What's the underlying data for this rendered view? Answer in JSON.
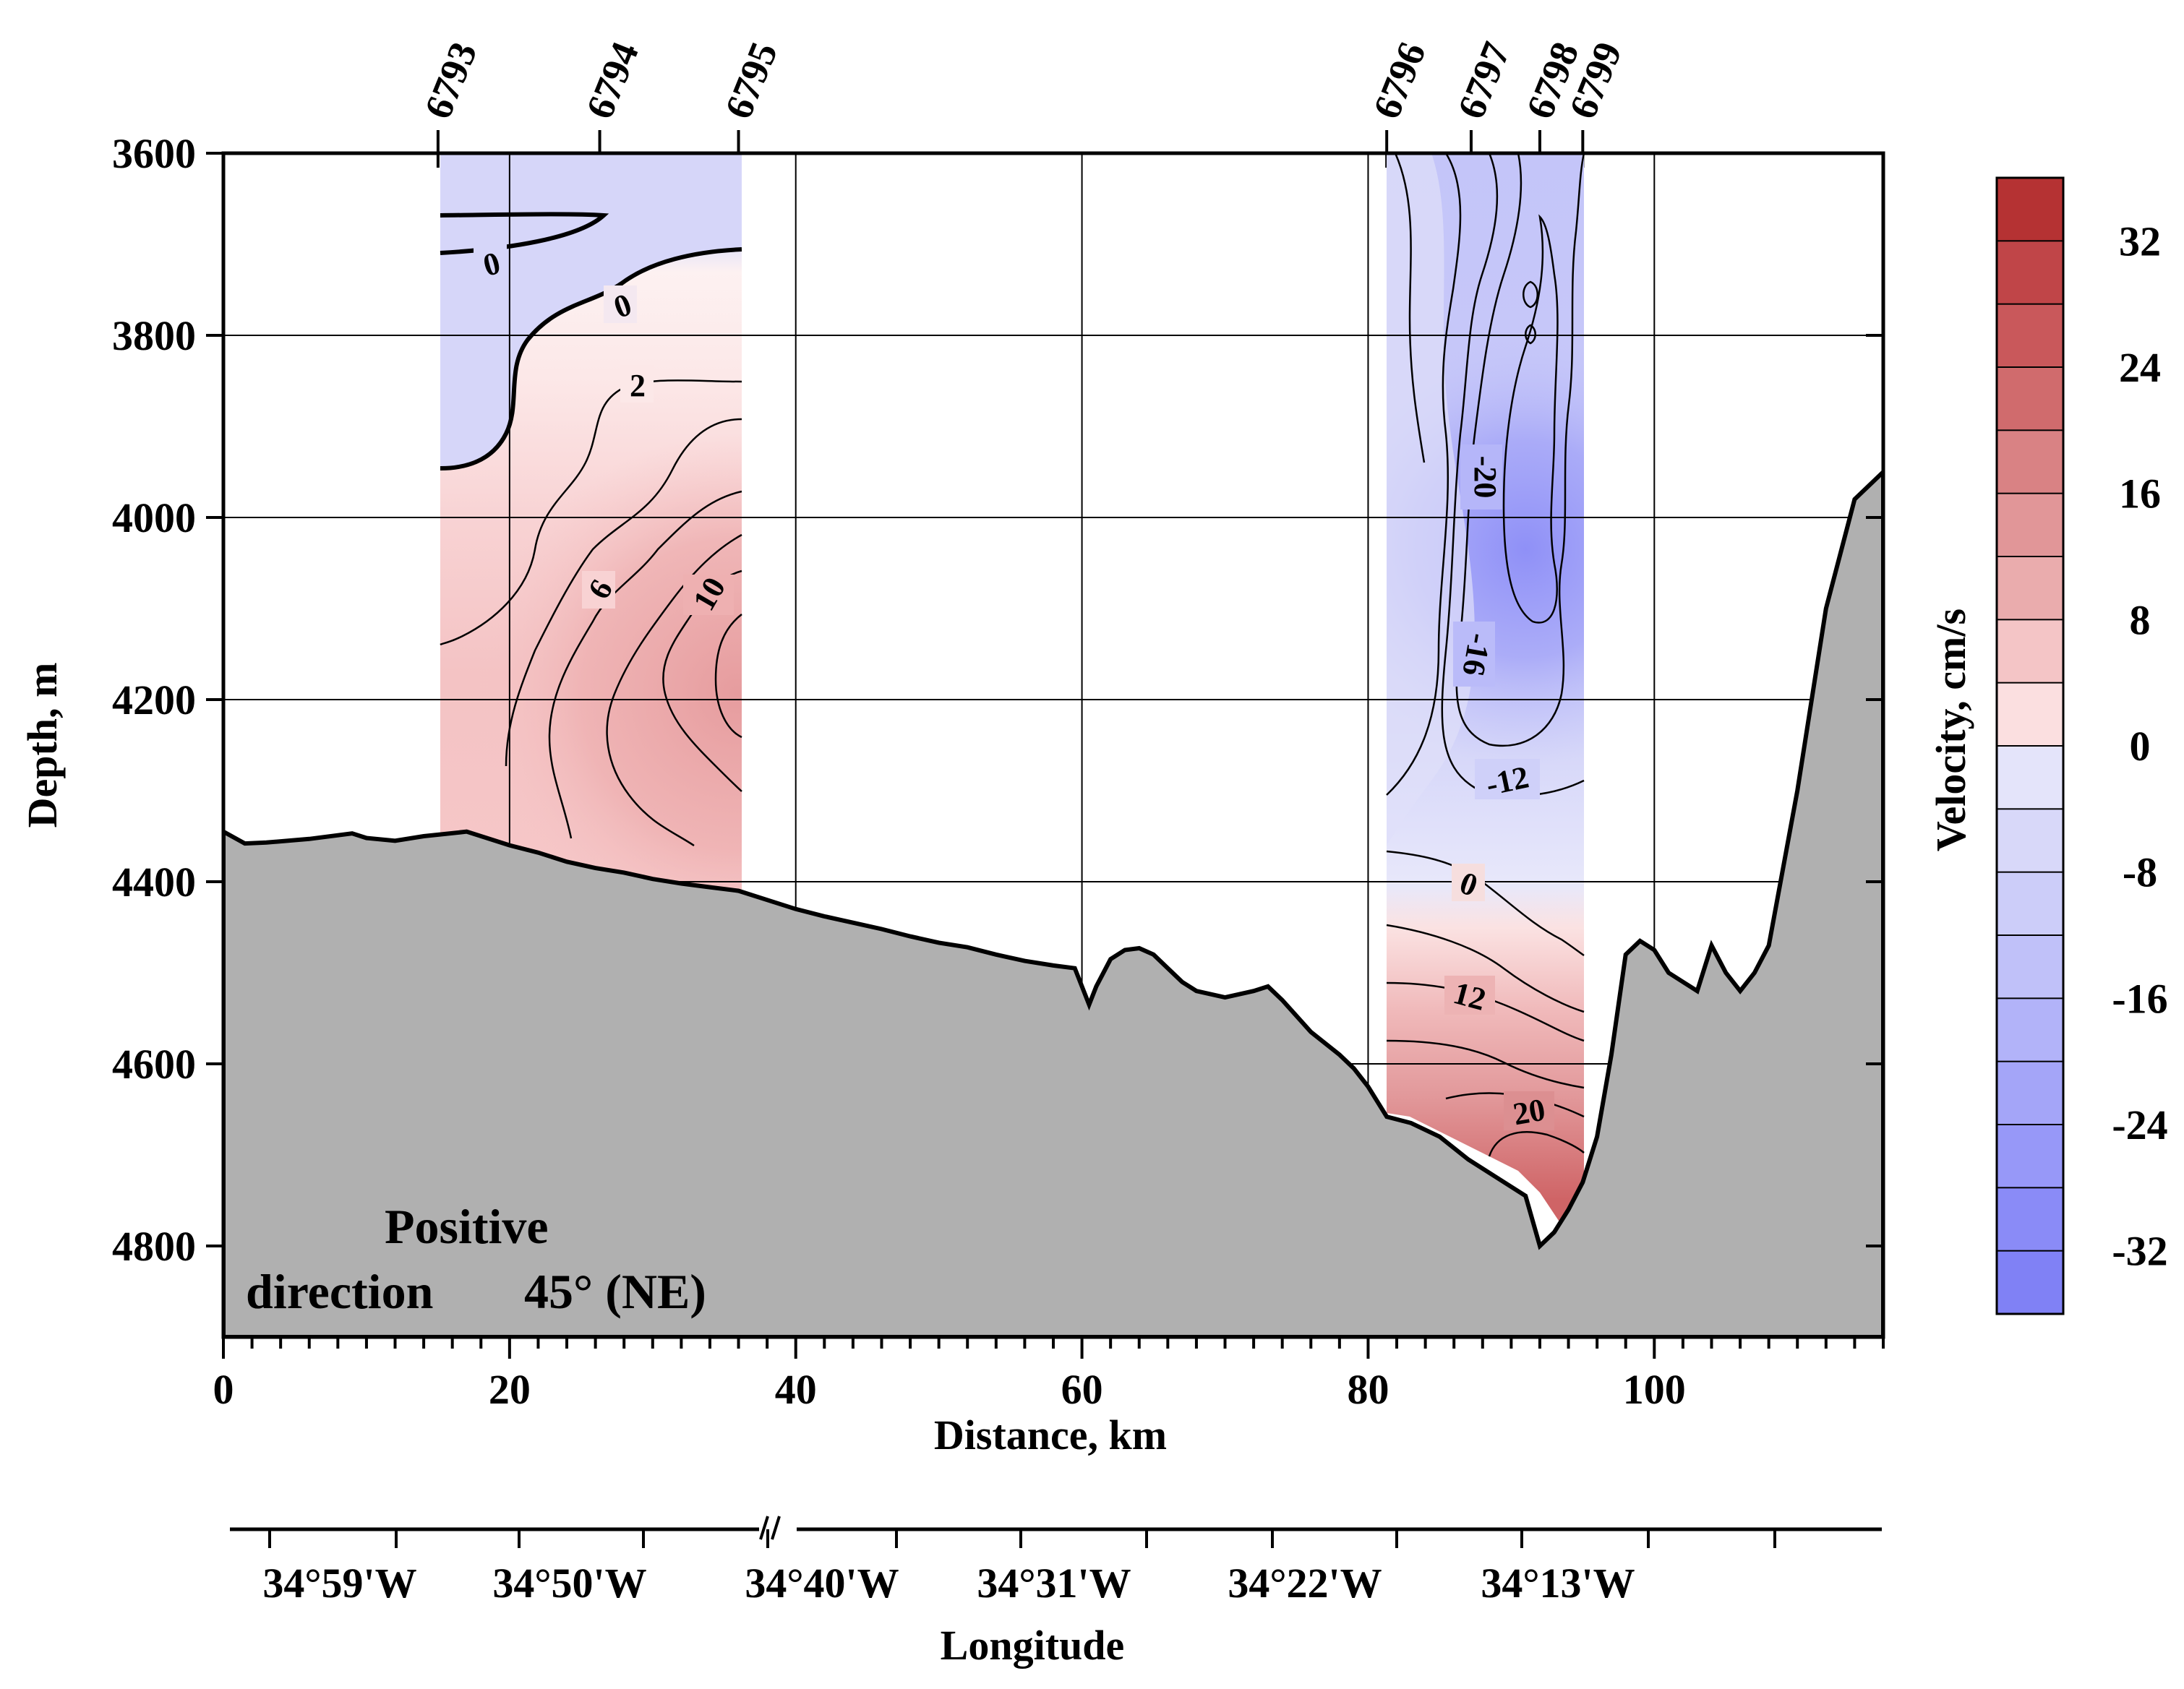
{
  "chart_data": {
    "type": "contour-section",
    "x_axis": {
      "label": "Distance, km",
      "range": [
        0,
        116
      ],
      "ticks": [
        0,
        20,
        40,
        60,
        80,
        100
      ],
      "tick_labels": [
        "0",
        "20",
        "40",
        "60",
        "80",
        "100"
      ],
      "minor_step": 2
    },
    "y_axis": {
      "label": "Depth, m",
      "range": [
        3600,
        4900
      ],
      "inverted": true,
      "ticks": [
        3600,
        3800,
        4000,
        4200,
        4400,
        4600,
        4800
      ],
      "tick_labels": [
        "3600",
        "3800",
        "4000",
        "4200",
        "4400",
        "4600",
        "4800"
      ]
    },
    "grid": true,
    "stations": [
      {
        "name": "6793",
        "x": 15.0
      },
      {
        "name": "6794",
        "x": 26.3
      },
      {
        "name": "6795",
        "x": 36.0
      },
      {
        "name": "6796",
        "x": 81.3
      },
      {
        "name": "6797",
        "x": 87.2
      },
      {
        "name": "6798",
        "x": 92.0
      },
      {
        "name": "6799",
        "x": 95.0
      }
    ],
    "bottom_profile": {
      "x": [
        0,
        1.5,
        3,
        6,
        9,
        10,
        12,
        14,
        17,
        20,
        22,
        24,
        26,
        28,
        30,
        32,
        34,
        36,
        38,
        40,
        42,
        44,
        46,
        48,
        50,
        52,
        54,
        56,
        58,
        59.5,
        60.5,
        61,
        62,
        63,
        64,
        65,
        66,
        67,
        68,
        70,
        72,
        73,
        74,
        76,
        78,
        79,
        80,
        81.3,
        83,
        85,
        87,
        89,
        91,
        92,
        93,
        94,
        95,
        96,
        97,
        98,
        99,
        100,
        101,
        102,
        103,
        104,
        105,
        106,
        107,
        108,
        110,
        112,
        114,
        116
      ],
      "depth": [
        4345,
        4358,
        4357,
        4353,
        4347,
        4352,
        4355,
        4350,
        4345,
        4360,
        4368,
        4378,
        4385,
        4390,
        4397,
        4402,
        4406,
        4410,
        4420,
        4430,
        4438,
        4445,
        4452,
        4460,
        4467,
        4472,
        4480,
        4487,
        4492,
        4495,
        4535,
        4515,
        4485,
        4475,
        4473,
        4480,
        4495,
        4510,
        4520,
        4527,
        4520,
        4515,
        4530,
        4565,
        4590,
        4605,
        4625,
        4658,
        4665,
        4680,
        4705,
        4725,
        4745,
        4800,
        4785,
        4760,
        4730,
        4680,
        4590,
        4480,
        4465,
        4475,
        4500,
        4510,
        4520,
        4470,
        4500,
        4520,
        4500,
        4470,
        4300,
        4100,
        3980,
        3950
      ]
    },
    "contour_labels": {
      "west": [
        "0",
        "0",
        "2",
        "6",
        "10"
      ],
      "east": [
        "-20",
        "-16",
        "-12",
        "0",
        "12",
        "20"
      ]
    },
    "colorbar": {
      "label": "Velocity, cm/s",
      "range": [
        -36,
        36
      ],
      "levels": [
        36,
        32,
        28,
        24,
        20,
        16,
        12,
        8,
        4,
        0,
        -4,
        -8,
        -12,
        -16,
        -20,
        -24,
        -28,
        -32,
        -36
      ],
      "colors": [
        "#b53233",
        "#c04548",
        "#c9585b",
        "#d06b6d",
        "#d98284",
        "#e19698",
        "#eaacad",
        "#f4c5c6",
        "#fbdfe0",
        "#e4e4fa",
        "#d8d8f9",
        "#cccdf9",
        "#c0c1f9",
        "#b2b3f9",
        "#a4a5f8",
        "#9798f8",
        "#8a8bf7",
        "#8081f5"
      ],
      "tick_labels": [
        "32",
        "24",
        "16",
        "8",
        "0",
        "-8",
        "-16",
        "-24",
        "-32"
      ]
    },
    "annotation": {
      "line1": "Positive",
      "line2": "direction",
      "line3": "45° (NE)"
    },
    "longitude_axis": {
      "label": "Longitude",
      "tick_labels": [
        "34°59'W",
        "34°50'W",
        "34°40'W",
        "34°31'W",
        "34°22'W",
        "34°13'W"
      ]
    }
  }
}
